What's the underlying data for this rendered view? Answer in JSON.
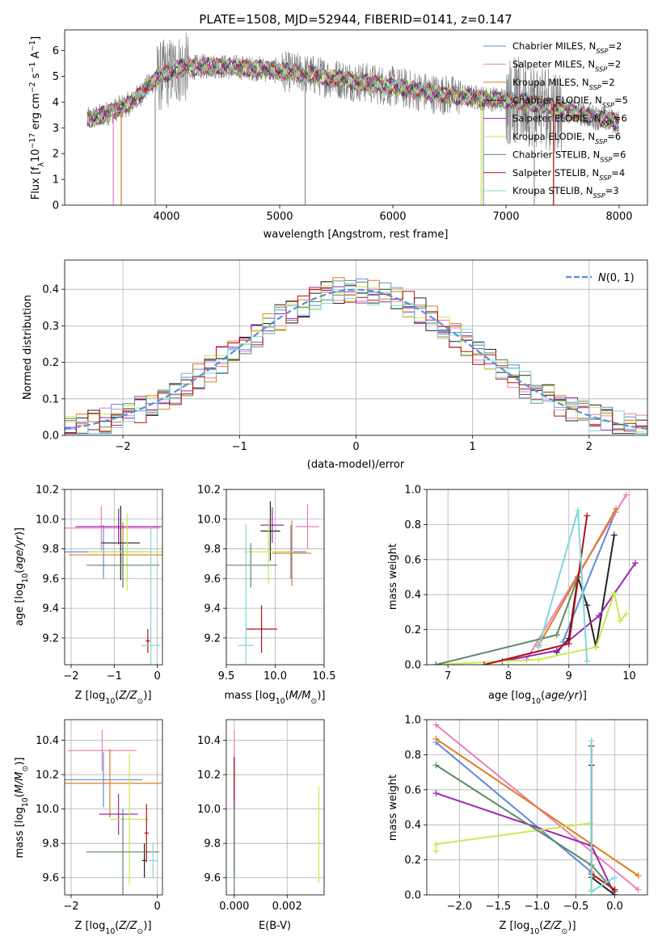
{
  "colors": {
    "Chabrier MILES": "#5b8ddb",
    "Salpeter MILES": "#e87eb8",
    "Kroupa MILES": "#e07b1a",
    "Chabrier ELODIE": "#222222",
    "Salpeter ELODIE": "#9c27b0",
    "Kroupa ELODIE": "#c8ea52",
    "Chabrier STELIB": "#5e8a66",
    "Salpeter STELIB": "#b01010",
    "Kroupa STELIB": "#7dd8dc",
    "data": "#7f7f7f",
    "normal": "#5b8ddb"
  },
  "chart_data": [
    {
      "type": "line",
      "title": "PLATE=1508, MJD=52944, FIBERID=0141, z=0.147",
      "xlabel": "wavelength [Angstrom, rest frame]",
      "ylabel": "Flux [f_λ 10^-17 erg cm^-2 s^-1 A^-1]",
      "xlim": [
        3100,
        8250
      ],
      "ylim": [
        0,
        6.8
      ],
      "xticks": [
        4000,
        5000,
        6000,
        7000,
        8000
      ],
      "yticks": [
        0,
        1,
        2,
        3,
        4,
        5,
        6
      ],
      "continuum": {
        "x": [
          3300,
          3500,
          3700,
          3900,
          4100,
          4400,
          4800,
          5200,
          5600,
          6000,
          6400,
          6800,
          7200,
          7600,
          7900,
          8000
        ],
        "y": [
          3.3,
          3.6,
          4.0,
          4.9,
          5.3,
          5.4,
          5.3,
          5.1,
          4.85,
          4.6,
          4.3,
          4.15,
          4.0,
          3.6,
          3.3,
          3.2
        ]
      },
      "legend": [
        "Chabrier MILES, N_SSP=2",
        "Salpeter MILES, N_SSP=2",
        "Kroupa MILES, N_SSP=2",
        "Chabrier ELODIE, N_SSP=5",
        "Salpeter ELODIE, N_SSP=6",
        "Kroupa ELODIE, N_SSP=6",
        "Chabrier STELIB, N_SSP=6",
        "Salpeter STELIB, N_SSP=4",
        "Kroupa STELIB, N_SSP=3"
      ],
      "legend_loc": "upper right"
    },
    {
      "type": "histogram",
      "xlabel": "(data-model)/error",
      "ylabel": "Normed distribution",
      "xlim": [
        -2.5,
        2.5
      ],
      "ylim": [
        0,
        0.48
      ],
      "xticks": [
        -2,
        -1,
        0,
        1,
        2
      ],
      "yticks": [
        0.0,
        0.1,
        0.2,
        0.3,
        0.4
      ],
      "bin_width": 0.1,
      "reference": {
        "name": "N(0,1)",
        "mu": 0,
        "sigma": 1
      },
      "grid": true
    },
    {
      "type": "scatter",
      "xlabel": "Z [log10(Z/Z_sun)]",
      "ylabel": "age  [log10(age/yr)]",
      "xlim": [
        -2.15,
        0.12
      ],
      "ylim": [
        9.02,
        10.2
      ],
      "xticks": [
        -2,
        -1,
        0
      ],
      "yticks": [
        9.2,
        9.4,
        9.6,
        9.8,
        10.0,
        10.2
      ],
      "points": [
        {
          "model": "Chabrier MILES",
          "x": -1.25,
          "y": 9.78,
          "xerr": 1.0,
          "yerr": 0.18
        },
        {
          "model": "Salpeter MILES",
          "x": -1.3,
          "y": 9.94,
          "xerr": 1.35,
          "yerr": 0.15
        },
        {
          "model": "Kroupa MILES",
          "x": -0.8,
          "y": 9.76,
          "xerr": 1.25,
          "yerr": 0.22
        },
        {
          "model": "Chabrier ELODIE",
          "x": -0.85,
          "y": 9.84,
          "xerr": 0.45,
          "yerr": 0.25
        },
        {
          "model": "Salpeter ELODIE",
          "x": -0.9,
          "y": 9.95,
          "xerr": 1.0,
          "yerr": 0.12
        },
        {
          "model": "Kroupa ELODIE",
          "x": -0.7,
          "y": 9.78,
          "xerr": 0.9,
          "yerr": 0.26
        },
        {
          "model": "Chabrier STELIB",
          "x": -0.8,
          "y": 9.69,
          "xerr": 0.85,
          "yerr": 0.15
        },
        {
          "model": "Salpeter STELIB",
          "x": -0.22,
          "y": 9.18,
          "xerr": 0.05,
          "yerr": 0.08
        },
        {
          "model": "Kroupa STELIB",
          "x": -0.15,
          "y": 9.15,
          "xerr": 0.22,
          "yerr": 0.8
        }
      ]
    },
    {
      "type": "scatter",
      "xlabel": "mass [log10(M/M_sun)]",
      "xlim": [
        9.5,
        10.5
      ],
      "ylim": [
        9.02,
        10.2
      ],
      "xticks": [
        9.5,
        10.0,
        10.5
      ],
      "yticks": [
        9.2,
        9.4,
        9.6,
        9.8,
        10.0,
        10.2
      ],
      "points": [
        {
          "model": "Chabrier MILES",
          "x": 10.16,
          "y": 9.78,
          "xerr": 0.16,
          "yerr": 0.18
        },
        {
          "model": "Salpeter MILES",
          "x": 10.33,
          "y": 9.95,
          "xerr": 0.12,
          "yerr": 0.15
        },
        {
          "model": "Kroupa MILES",
          "x": 10.17,
          "y": 9.77,
          "xerr": 0.2,
          "yerr": 0.22
        },
        {
          "model": "Chabrier ELODIE",
          "x": 9.95,
          "y": 9.92,
          "xerr": 0.1,
          "yerr": 0.2
        },
        {
          "model": "Salpeter ELODIE",
          "x": 9.97,
          "y": 9.96,
          "xerr": 0.12,
          "yerr": 0.12
        },
        {
          "model": "Kroupa ELODIE",
          "x": 9.93,
          "y": 9.78,
          "xerr": 0.25,
          "yerr": 0.22
        },
        {
          "model": "Chabrier STELIB",
          "x": 9.75,
          "y": 9.69,
          "xerr": 0.27,
          "yerr": 0.15
        },
        {
          "model": "Salpeter STELIB",
          "x": 9.86,
          "y": 9.26,
          "xerr": 0.16,
          "yerr": 0.16
        },
        {
          "model": "Kroupa STELIB",
          "x": 9.7,
          "y": 9.15,
          "xerr": 0.08,
          "yerr": 0.82
        }
      ]
    },
    {
      "type": "line",
      "xlabel": "age  [log10(age/yr)]",
      "ylabel": "mass weight",
      "xlim": [
        6.65,
        10.3
      ],
      "ylim": [
        0,
        1
      ],
      "xticks": [
        7,
        8,
        9,
        10
      ],
      "yticks": [
        0.0,
        0.2,
        0.4,
        0.6,
        0.8,
        1.0
      ],
      "series": [
        {
          "model": "Chabrier MILES",
          "x": [
            8.9,
            9.77
          ],
          "y": [
            0.13,
            0.87
          ]
        },
        {
          "model": "Salpeter MILES",
          "x": [
            8.3,
            9.95
          ],
          "y": [
            0.03,
            0.97
          ]
        },
        {
          "model": "Kroupa MILES",
          "x": [
            8.5,
            9.78
          ],
          "y": [
            0.11,
            0.89
          ]
        },
        {
          "model": "Chabrier ELODIE",
          "x": [
            8.8,
            9.0,
            9.15,
            9.3,
            9.45,
            9.75
          ],
          "y": [
            0.07,
            0.15,
            0.5,
            0.34,
            0.1,
            0.74
          ]
        },
        {
          "model": "Salpeter ELODIE",
          "x": [
            7.9,
            8.8,
            9.5,
            10.1
          ],
          "y": [
            0.02,
            0.08,
            0.28,
            0.58
          ]
        },
        {
          "model": "Kroupa ELODIE",
          "x": [
            6.8,
            8.5,
            9.45,
            9.75,
            9.85,
            9.95
          ],
          "y": [
            0.0,
            0.03,
            0.1,
            0.41,
            0.25,
            0.29
          ]
        },
        {
          "model": "Chabrier STELIB",
          "x": [
            6.8,
            8.8,
            9.15
          ],
          "y": [
            0.0,
            0.17,
            0.5
          ]
        },
        {
          "model": "Salpeter STELIB",
          "x": [
            7.6,
            9.0,
            9.3
          ],
          "y": [
            0.0,
            0.12,
            0.85
          ]
        },
        {
          "model": "Kroupa STELIB",
          "x": [
            8.5,
            9.15,
            9.3
          ],
          "y": [
            0.1,
            0.88,
            0.02
          ]
        }
      ]
    },
    {
      "type": "scatter",
      "xlabel": "Z [log10(Z/Z_sun)]",
      "ylabel": "mass [log10(M/M_sun)]",
      "xlim": [
        -2.15,
        0.12
      ],
      "ylim": [
        9.5,
        10.52
      ],
      "xticks": [
        -2,
        0
      ],
      "yticks": [
        9.6,
        9.8,
        10.0,
        10.2,
        10.4
      ],
      "points": [
        {
          "model": "Chabrier MILES",
          "x": -1.25,
          "y": 10.17,
          "xerr": 0.9,
          "yerr": 0.16
        },
        {
          "model": "Salpeter MILES",
          "x": -1.28,
          "y": 10.34,
          "xerr": 0.8,
          "yerr": 0.12
        },
        {
          "model": "Kroupa MILES",
          "x": -1.1,
          "y": 10.15,
          "xerr": 1.2,
          "yerr": 0.2
        },
        {
          "model": "Chabrier ELODIE",
          "x": -0.3,
          "y": 9.7,
          "xerr": 0.05,
          "yerr": 0.1
        },
        {
          "model": "Salpeter ELODIE",
          "x": -0.9,
          "y": 9.97,
          "xerr": 0.45,
          "yerr": 0.12
        },
        {
          "model": "Kroupa ELODIE",
          "x": -0.65,
          "y": 9.94,
          "xerr": 0.45,
          "yerr": 0.38
        },
        {
          "model": "Chabrier STELIB",
          "x": -0.8,
          "y": 9.75,
          "xerr": 0.85,
          "yerr": 0.25
        },
        {
          "model": "Salpeter STELIB",
          "x": -0.25,
          "y": 9.86,
          "xerr": 0.05,
          "yerr": 0.17
        },
        {
          "model": "Kroupa STELIB",
          "x": -0.1,
          "y": 9.7,
          "xerr": 0.1,
          "yerr": 0.1
        }
      ]
    },
    {
      "type": "scatter",
      "xlabel": "E(B-V)",
      "xlim": [
        -0.0003,
        0.0034
      ],
      "ylim": [
        9.5,
        10.52
      ],
      "xticks": [
        0.0,
        0.002
      ],
      "yticks": [
        9.6,
        9.8,
        10.0,
        10.2,
        10.4
      ],
      "points": [
        {
          "model": "Chabrier MILES",
          "x": 0.0,
          "y": 10.17,
          "yerr": 0.16
        },
        {
          "model": "Salpeter MILES",
          "x": 0.0,
          "y": 10.34,
          "yerr": 0.12
        },
        {
          "model": "Chabrier ELODIE",
          "x": 0.0,
          "y": 9.95,
          "yerr": 0.35
        },
        {
          "model": "Salpeter ELODIE",
          "x": 0.0,
          "y": 10.0,
          "yerr": 0.3
        },
        {
          "model": "Chabrier STELIB",
          "x": 0.0,
          "y": 9.75,
          "yerr": 0.25
        },
        {
          "model": "Salpeter STELIB",
          "x": 0.0,
          "y": 10.18,
          "yerr": 0.12
        },
        {
          "model": "Kroupa ELODIE",
          "x": 0.0032,
          "y": 9.85,
          "yerr": 0.28
        }
      ]
    },
    {
      "type": "line",
      "xlabel": "Z [log10(Z/Z_sun)]",
      "ylabel": "mass weight",
      "xlim": [
        -2.42,
        0.42
      ],
      "ylim": [
        0,
        1
      ],
      "xticks": [
        -2.0,
        -1.5,
        -1.0,
        -0.5,
        0.0
      ],
      "yticks": [
        0.0,
        0.2,
        0.4,
        0.6,
        0.8,
        1.0
      ],
      "series": [
        {
          "model": "Chabrier MILES",
          "x": [
            -2.3,
            -0.3
          ],
          "y": [
            0.87,
            0.13
          ]
        },
        {
          "model": "Salpeter MILES",
          "x": [
            -2.3,
            0.3
          ],
          "y": [
            0.97,
            0.03
          ]
        },
        {
          "model": "Kroupa MILES",
          "x": [
            -2.3,
            0.3
          ],
          "y": [
            0.89,
            0.11
          ]
        },
        {
          "model": "Chabrier ELODIE",
          "x": [
            -0.3,
            -0.3,
            0.0
          ],
          "y": [
            0.74,
            0.1,
            0.0
          ]
        },
        {
          "model": "Salpeter ELODIE",
          "x": [
            -2.3,
            -0.3,
            0.0
          ],
          "y": [
            0.58,
            0.28,
            0.0
          ]
        },
        {
          "model": "Kroupa ELODIE",
          "x": [
            -2.3,
            -2.3,
            -0.3,
            -0.3
          ],
          "y": [
            0.25,
            0.29,
            0.41,
            0.03
          ]
        },
        {
          "model": "Chabrier STELIB",
          "x": [
            -2.3,
            -0.3,
            0.0
          ],
          "y": [
            0.74,
            0.17,
            0.02
          ]
        },
        {
          "model": "Salpeter STELIB",
          "x": [
            -0.3,
            -0.3,
            0.0
          ],
          "y": [
            0.85,
            0.12,
            0.03
          ]
        },
        {
          "model": "Kroupa STELIB",
          "x": [
            -0.3,
            -0.3,
            0.0
          ],
          "y": [
            0.88,
            0.02,
            0.1
          ]
        }
      ]
    }
  ]
}
